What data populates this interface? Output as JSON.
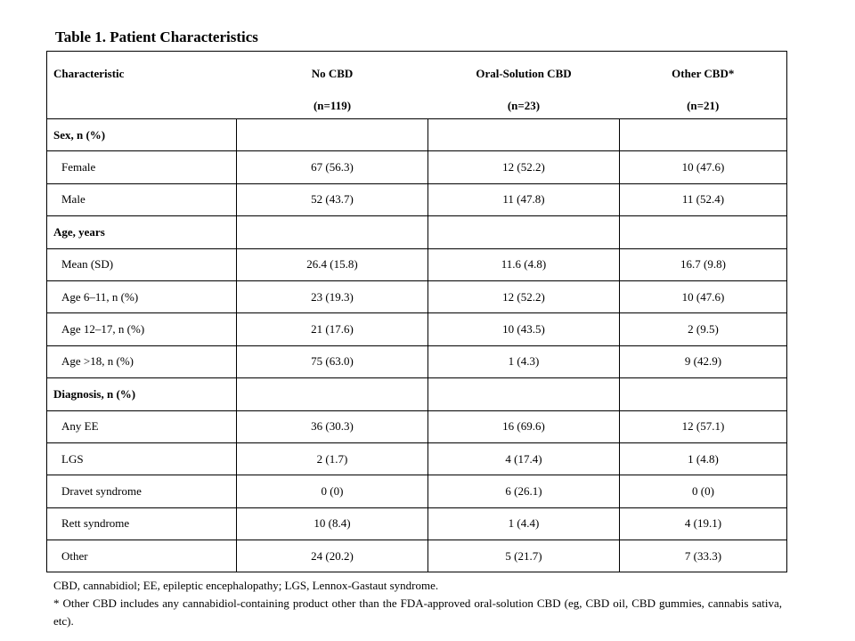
{
  "title": "Table 1. Patient Characteristics",
  "table": {
    "header": {
      "label": "Characteristic",
      "columns": [
        {
          "name": "No CBD",
          "n": "(n=119)"
        },
        {
          "name": "Oral-Solution  CBD",
          "n": "(n=23)"
        },
        {
          "name": "Other CBD*",
          "n": "(n=21)"
        }
      ]
    },
    "rows": [
      [
        "Sex, n (%)"
      ],
      [
        "Female",
        "67 (56.3)",
        "12 (52.2)",
        "10 (47.6)"
      ],
      [
        "Male",
        "52 (43.7)",
        "11 (47.8)",
        "11 (52.4)"
      ],
      [
        "Age, years"
      ],
      [
        "Mean (SD)",
        "26.4 (15.8)",
        "11.6 (4.8)",
        "16.7 (9.8)"
      ],
      [
        "Age 6–11, n (%)",
        "23 (19.3)",
        "12 (52.2)",
        "10 (47.6)"
      ],
      [
        "Age 12–17, n (%)",
        "21 (17.6)",
        "10 (43.5)",
        "2 (9.5)"
      ],
      [
        "Age >18, n (%)",
        "75 (63.0)",
        "1 (4.3)",
        "9 (42.9)"
      ],
      [
        "Diagnosis, n (%)"
      ],
      [
        "Any EE",
        "36 (30.3)",
        "16 (69.6)",
        "12 (57.1)"
      ],
      [
        "LGS",
        "2 (1.7)",
        "4 (17.4)",
        "1 (4.8)"
      ],
      [
        "Dravet syndrome",
        "0 (0)",
        "6 (26.1)",
        "0 (0)"
      ],
      [
        "Rett syndrome",
        "10 (8.4)",
        "1 (4.4)",
        "4 (19.1)"
      ],
      [
        "Other",
        "24 (20.2)",
        "5 (21.7)",
        "7 (33.3)"
      ]
    ]
  },
  "footnotes": [
    "CBD, cannabidiol; EE, epileptic encephalopathy; LGS, Lennox-Gastaut syndrome.",
    "* Other CBD includes any cannabidiol-containing product other than the FDA-approved oral-solution CBD (eg, CBD oil, CBD gummies, cannabis sativa, etc)."
  ]
}
